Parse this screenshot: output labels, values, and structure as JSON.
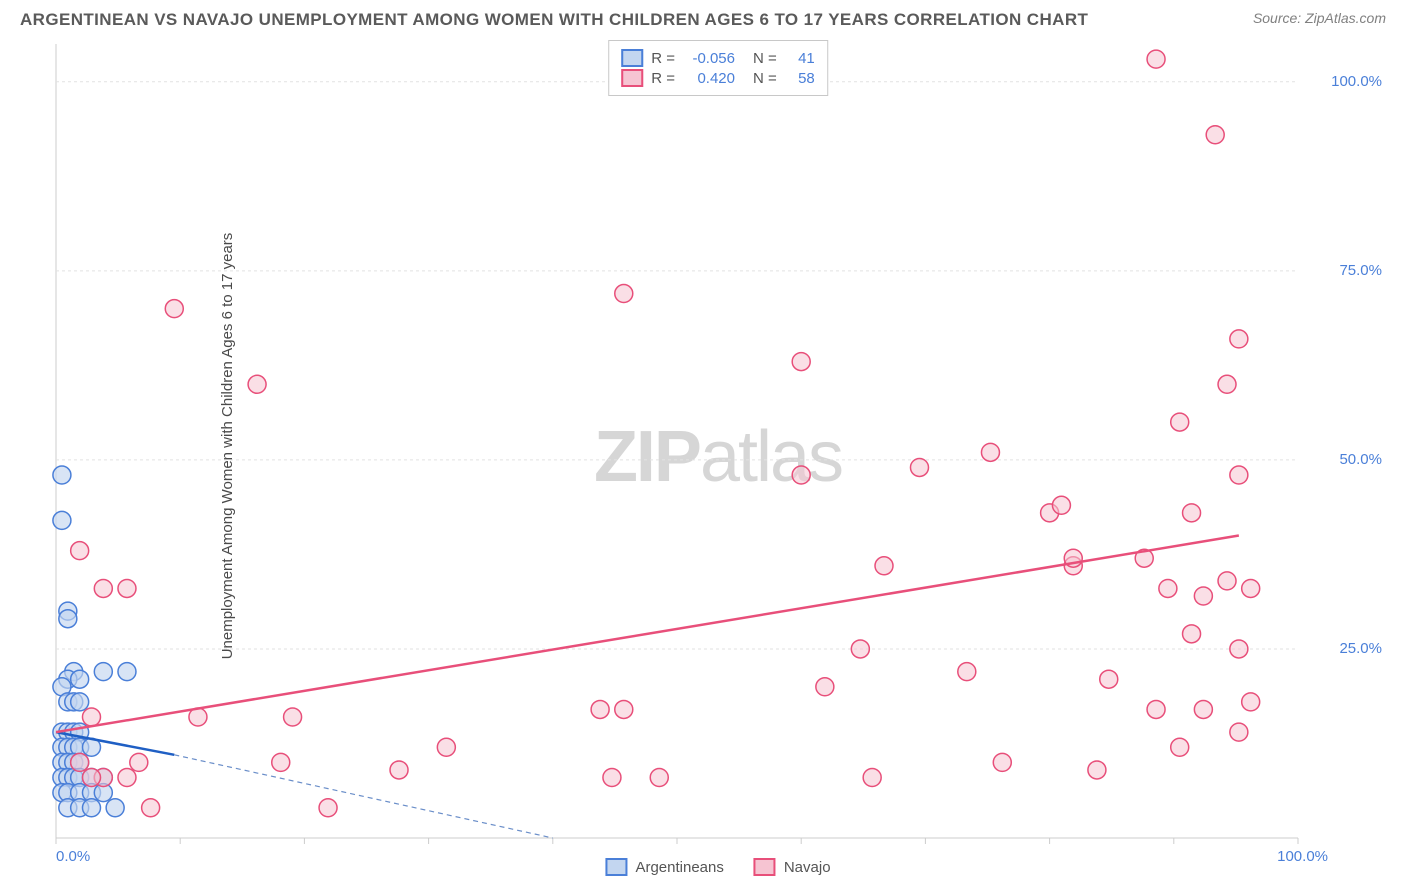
{
  "title": "ARGENTINEAN VS NAVAJO UNEMPLOYMENT AMONG WOMEN WITH CHILDREN AGES 6 TO 17 YEARS CORRELATION CHART",
  "source": "Source: ZipAtlas.com",
  "watermark_bold": "ZIP",
  "watermark_rest": "atlas",
  "y_axis_label": "Unemployment Among Women with Children Ages 6 to 17 years",
  "chart": {
    "type": "scatter",
    "background_color": "#ffffff",
    "grid_color": "#e2e2e2",
    "border_color": "#cccccc",
    "xlim": [
      0,
      105
    ],
    "ylim": [
      0,
      105
    ],
    "x_ticks": [
      {
        "v": 0,
        "label": "0.0%"
      },
      {
        "v": 100,
        "label": "100.0%"
      }
    ],
    "y_ticks": [
      {
        "v": 25,
        "label": "25.0%"
      },
      {
        "v": 50,
        "label": "50.0%"
      },
      {
        "v": 75,
        "label": "75.0%"
      },
      {
        "v": 100,
        "label": "100.0%"
      }
    ],
    "grid_y": [
      25,
      50,
      75,
      100
    ],
    "marker_radius": 9,
    "marker_stroke_width": 1.5,
    "tick_font_size": 15,
    "tick_color": "#4a7fd8",
    "series": [
      {
        "name": "Argentineans",
        "color_stroke": "#4a7fd8",
        "color_fill": "#c3d6f0",
        "fill_opacity": 0.65,
        "R": "-0.056",
        "N": "41",
        "trend": {
          "x1": 0,
          "y1": 14,
          "x2": 10,
          "y2": 11,
          "color": "#1f5fc4",
          "width": 2.5,
          "dash": "none"
        },
        "trend_ext": {
          "x1": 10,
          "y1": 11,
          "x2": 42,
          "y2": 0,
          "color": "#6a8ec9",
          "width": 1.2,
          "dash": "5,4"
        },
        "points": [
          [
            0.5,
            48
          ],
          [
            0.5,
            42
          ],
          [
            1,
            30
          ],
          [
            1,
            29
          ],
          [
            1.5,
            22
          ],
          [
            1,
            21
          ],
          [
            2,
            21
          ],
          [
            0.5,
            20
          ],
          [
            1,
            18
          ],
          [
            1.5,
            18
          ],
          [
            2,
            18
          ],
          [
            4,
            22
          ],
          [
            6,
            22
          ],
          [
            0.5,
            14
          ],
          [
            1,
            14
          ],
          [
            1.5,
            14
          ],
          [
            2,
            14
          ],
          [
            0.5,
            12
          ],
          [
            1,
            12
          ],
          [
            1.5,
            12
          ],
          [
            2,
            12
          ],
          [
            3,
            12
          ],
          [
            0.5,
            10
          ],
          [
            1,
            10
          ],
          [
            1.5,
            10
          ],
          [
            2,
            10
          ],
          [
            0.5,
            8
          ],
          [
            1,
            8
          ],
          [
            1.5,
            8
          ],
          [
            2,
            8
          ],
          [
            3,
            8
          ],
          [
            4,
            8
          ],
          [
            0.5,
            6
          ],
          [
            1,
            6
          ],
          [
            2,
            6
          ],
          [
            3,
            6
          ],
          [
            4,
            6
          ],
          [
            1,
            4
          ],
          [
            2,
            4
          ],
          [
            3,
            4
          ],
          [
            5,
            4
          ]
        ]
      },
      {
        "name": "Navajo",
        "color_stroke": "#e84f7a",
        "color_fill": "#f6c4d2",
        "fill_opacity": 0.55,
        "R": "0.420",
        "N": "58",
        "trend": {
          "x1": 0,
          "y1": 14,
          "x2": 100,
          "y2": 40,
          "color": "#e84f7a",
          "width": 2.5,
          "dash": "none"
        },
        "points": [
          [
            2,
            38
          ],
          [
            4,
            33
          ],
          [
            6,
            33
          ],
          [
            3,
            16
          ],
          [
            4,
            8
          ],
          [
            6,
            8
          ],
          [
            7,
            10
          ],
          [
            8,
            4
          ],
          [
            10,
            70
          ],
          [
            12,
            16
          ],
          [
            17,
            60
          ],
          [
            19,
            10
          ],
          [
            20,
            16
          ],
          [
            23,
            4
          ],
          [
            29,
            9
          ],
          [
            33,
            12
          ],
          [
            46,
            17
          ],
          [
            47,
            8
          ],
          [
            48,
            17
          ],
          [
            48,
            72
          ],
          [
            51,
            8
          ],
          [
            63,
            48
          ],
          [
            63,
            63
          ],
          [
            65,
            20
          ],
          [
            68,
            25
          ],
          [
            69,
            8
          ],
          [
            70,
            36
          ],
          [
            73,
            49
          ],
          [
            77,
            22
          ],
          [
            79,
            51
          ],
          [
            80,
            10
          ],
          [
            84,
            43
          ],
          [
            85,
            44
          ],
          [
            86,
            36
          ],
          [
            86,
            37
          ],
          [
            88,
            9
          ],
          [
            89,
            21
          ],
          [
            92,
            37
          ],
          [
            93,
            17
          ],
          [
            93,
            103
          ],
          [
            94,
            33
          ],
          [
            95,
            12
          ],
          [
            95,
            55
          ],
          [
            96,
            43
          ],
          [
            96,
            27
          ],
          [
            97,
            17
          ],
          [
            97,
            32
          ],
          [
            98,
            93
          ],
          [
            99,
            34
          ],
          [
            99,
            60
          ],
          [
            100,
            14
          ],
          [
            100,
            25
          ],
          [
            100,
            48
          ],
          [
            100,
            66
          ],
          [
            101,
            33
          ],
          [
            101,
            18
          ],
          [
            2,
            10
          ],
          [
            3,
            8
          ]
        ]
      }
    ],
    "legend_top": {
      "rows": [
        {
          "swatch_series": 0,
          "r_label": "R =",
          "r_val": "-0.056",
          "n_label": "N =",
          "n_val": "41"
        },
        {
          "swatch_series": 1,
          "r_label": "R =",
          "r_val": "0.420",
          "n_label": "N =",
          "n_val": "58"
        }
      ]
    },
    "legend_bottom": [
      {
        "swatch_series": 0,
        "label": "Argentineans"
      },
      {
        "swatch_series": 1,
        "label": "Navajo"
      }
    ]
  }
}
